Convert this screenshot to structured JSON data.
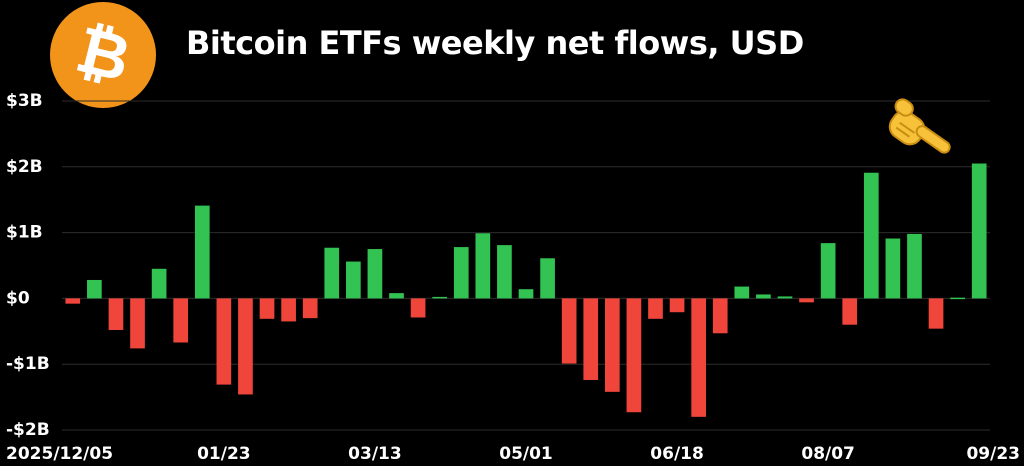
{
  "header": {
    "title": "Bitcoin ETFs weekly net flows, USD",
    "logo_glyph": "₿",
    "logo_icon": "bitcoin-logo-icon",
    "pointer_icon": "pointing-hand-emoji-icon"
  },
  "colors": {
    "positive": "#32c352",
    "negative": "#f0453b",
    "grid": "#2c2c2c",
    "logo": "#f2931a"
  },
  "chart_data": {
    "type": "bar",
    "title": "Bitcoin ETFs weekly net flows, USD",
    "xlabel": "",
    "ylabel": "",
    "ylim": [
      -2,
      3
    ],
    "yticks": [
      {
        "value": 3,
        "label": "$3B"
      },
      {
        "value": 2,
        "label": "$2B"
      },
      {
        "value": 1,
        "label": "$1B"
      },
      {
        "value": 0,
        "label": "$0"
      },
      {
        "value": -1,
        "label": "-$1B"
      },
      {
        "value": -2,
        "label": "-$2B"
      }
    ],
    "xtick_labels": [
      {
        "index": 0,
        "label": "2025/12/05"
      },
      {
        "index": 7,
        "label": "01/23"
      },
      {
        "index": 14,
        "label": "03/13"
      },
      {
        "index": 21,
        "label": "05/01"
      },
      {
        "index": 28,
        "label": "06/18"
      },
      {
        "index": 35,
        "label": "08/07"
      },
      {
        "index": 42,
        "label": "09/23"
      }
    ],
    "grid": true,
    "values": [
      -0.08,
      0.28,
      -0.48,
      -0.76,
      0.45,
      -0.67,
      1.41,
      -1.31,
      -1.46,
      -0.31,
      -0.35,
      -0.3,
      0.77,
      0.56,
      0.75,
      0.08,
      -0.29,
      0.02,
      0.78,
      0.99,
      0.81,
      0.14,
      0.61,
      -0.99,
      -1.24,
      -1.42,
      -1.73,
      -0.31,
      -0.21,
      -1.8,
      -0.53,
      0.18,
      0.06,
      0.03,
      -0.06,
      0.84,
      -0.4,
      1.91,
      0.91,
      0.98,
      -0.46,
      0.0,
      2.05
    ]
  }
}
